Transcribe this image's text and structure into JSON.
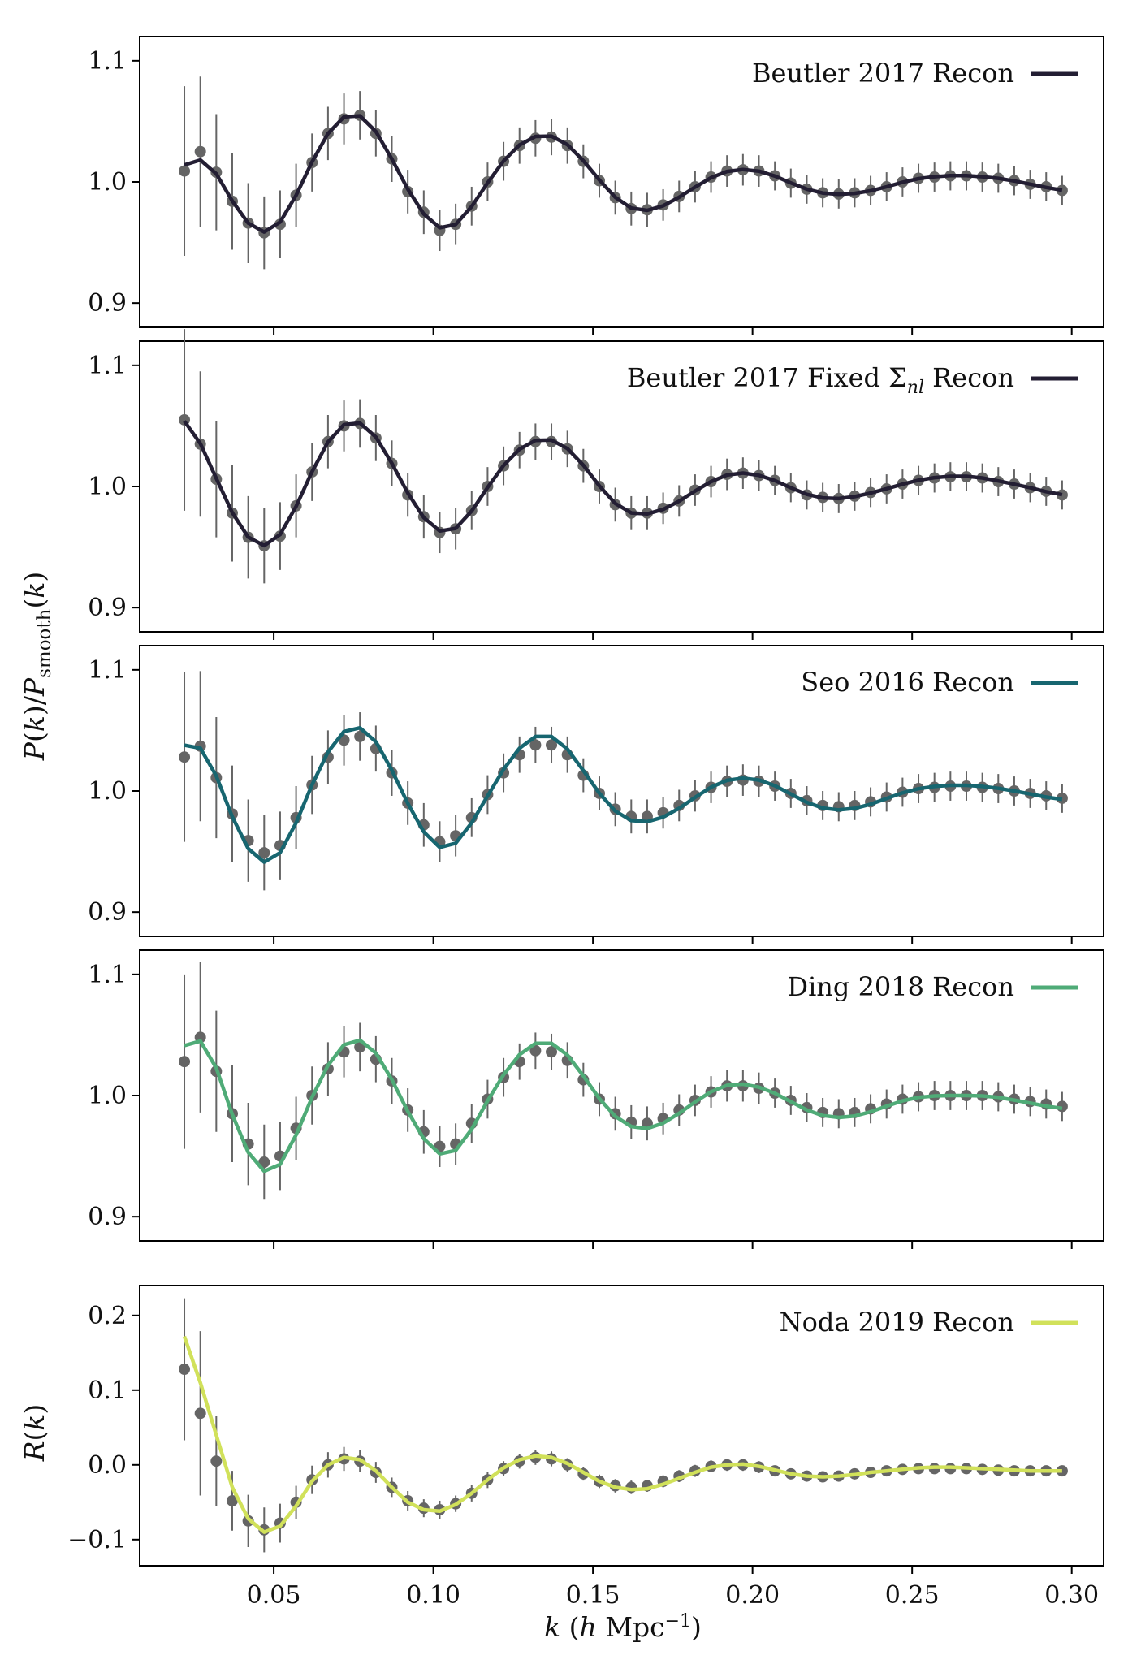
{
  "figure": {
    "ylabel_main": "P(k)/P_smooth(k)",
    "xlabel": "k (h Mpc⁻¹)",
    "x_ticks": [
      "0.05",
      "0.10",
      "0.15",
      "0.20",
      "0.25",
      "0.30"
    ]
  },
  "colors": {
    "data_points": "#656565",
    "beutler": "#231e33",
    "seo": "#176670",
    "ding": "#4fab77",
    "noda": "#d1e15a"
  },
  "chart_data": [
    {
      "type": "line",
      "xlim": [
        0.008,
        0.31
      ],
      "ylim": [
        0.88,
        1.12
      ],
      "y_ticks": [
        "0.9",
        "1.0",
        "1.1"
      ],
      "series": [
        {
          "name": "Beutler 2017 Recon",
          "color": "#231e33",
          "shift": 0.0,
          "amp": 1.0,
          "yscale": 1.0
        }
      ],
      "data_scale": 1.0,
      "data_shift": 0.0,
      "x": [
        0.022,
        0.027,
        0.032,
        0.037,
        0.042,
        0.047,
        0.052,
        0.057,
        0.062,
        0.067,
        0.072,
        0.077,
        0.082,
        0.087,
        0.092,
        0.097,
        0.102,
        0.107,
        0.112,
        0.117,
        0.122,
        0.127,
        0.132,
        0.137,
        0.142,
        0.147,
        0.152,
        0.157,
        0.162,
        0.167,
        0.172,
        0.177,
        0.182,
        0.187,
        0.192,
        0.197,
        0.202,
        0.207,
        0.212,
        0.217,
        0.222,
        0.227,
        0.232,
        0.237,
        0.242,
        0.247,
        0.252,
        0.257,
        0.262,
        0.267,
        0.272,
        0.277,
        0.282,
        0.287,
        0.292,
        0.297
      ],
      "y": [
        1.009,
        1.025,
        1.008,
        0.984,
        0.966,
        0.958,
        0.965,
        0.989,
        1.016,
        1.04,
        1.052,
        1.055,
        1.04,
        1.019,
        0.992,
        0.975,
        0.96,
        0.965,
        0.98,
        1.0,
        1.017,
        1.03,
        1.036,
        1.037,
        1.03,
        1.017,
        1.001,
        0.987,
        0.978,
        0.977,
        0.981,
        0.988,
        0.996,
        1.004,
        1.009,
        1.01,
        1.009,
        1.005,
        0.999,
        0.994,
        0.991,
        0.99,
        0.991,
        0.993,
        0.996,
        1.0,
        1.003,
        1.004,
        1.005,
        1.005,
        1.004,
        1.003,
        1.001,
        0.998,
        0.996,
        0.993
      ],
      "yerr": [
        0.07,
        0.062,
        0.048,
        0.04,
        0.033,
        0.03,
        0.028,
        0.026,
        0.024,
        0.022,
        0.021,
        0.02,
        0.019,
        0.019,
        0.018,
        0.018,
        0.017,
        0.017,
        0.016,
        0.016,
        0.016,
        0.015,
        0.015,
        0.015,
        0.015,
        0.014,
        0.014,
        0.014,
        0.014,
        0.014,
        0.013,
        0.013,
        0.013,
        0.013,
        0.013,
        0.013,
        0.013,
        0.012,
        0.012,
        0.012,
        0.012,
        0.012,
        0.012,
        0.012,
        0.012,
        0.012,
        0.012,
        0.012,
        0.012,
        0.012,
        0.012,
        0.012,
        0.012,
        0.012,
        0.012,
        0.012
      ]
    },
    {
      "type": "line",
      "xlim": [
        0.008,
        0.31
      ],
      "ylim": [
        0.88,
        1.12
      ],
      "y_ticks": [
        "0.9",
        "1.0",
        "1.1"
      ],
      "series": [
        {
          "name": "Beutler 2017 Fixed Σ_nl Recon",
          "color": "#231e33",
          "shift": 0.0,
          "amp": 1.0,
          "yscale": 1.0
        }
      ],
      "x": [
        0.022,
        0.027,
        0.032,
        0.037,
        0.042,
        0.047,
        0.052,
        0.057,
        0.062,
        0.067,
        0.072,
        0.077,
        0.082,
        0.087,
        0.092,
        0.097,
        0.102,
        0.107,
        0.112,
        0.117,
        0.122,
        0.127,
        0.132,
        0.137,
        0.142,
        0.147,
        0.152,
        0.157,
        0.162,
        0.167,
        0.172,
        0.177,
        0.182,
        0.187,
        0.192,
        0.197,
        0.202,
        0.207,
        0.212,
        0.217,
        0.222,
        0.227,
        0.232,
        0.237,
        0.242,
        0.247,
        0.252,
        0.257,
        0.262,
        0.267,
        0.272,
        0.277,
        0.282,
        0.287,
        0.292,
        0.297
      ],
      "y": [
        1.055,
        1.035,
        1.006,
        0.978,
        0.958,
        0.951,
        0.959,
        0.984,
        1.012,
        1.037,
        1.05,
        1.052,
        1.04,
        1.019,
        0.993,
        0.975,
        0.962,
        0.965,
        0.98,
        1.0,
        1.017,
        1.03,
        1.037,
        1.037,
        1.031,
        1.017,
        1.0,
        0.985,
        0.978,
        0.978,
        0.982,
        0.988,
        0.997,
        1.004,
        1.01,
        1.011,
        1.009,
        1.005,
        0.999,
        0.993,
        0.991,
        0.99,
        0.992,
        0.995,
        0.998,
        1.002,
        1.005,
        1.007,
        1.008,
        1.008,
        1.007,
        1.004,
        1.002,
        0.999,
        0.996,
        0.993
      ],
      "yerr": [
        0.075,
        0.06,
        0.048,
        0.04,
        0.034,
        0.031,
        0.028,
        0.026,
        0.024,
        0.022,
        0.021,
        0.02,
        0.019,
        0.019,
        0.018,
        0.018,
        0.017,
        0.017,
        0.016,
        0.016,
        0.016,
        0.015,
        0.015,
        0.015,
        0.015,
        0.014,
        0.014,
        0.014,
        0.014,
        0.014,
        0.013,
        0.013,
        0.013,
        0.013,
        0.013,
        0.013,
        0.013,
        0.012,
        0.012,
        0.012,
        0.012,
        0.012,
        0.012,
        0.012,
        0.012,
        0.012,
        0.012,
        0.012,
        0.012,
        0.012,
        0.012,
        0.012,
        0.012,
        0.012,
        0.012,
        0.012
      ]
    },
    {
      "type": "line",
      "xlim": [
        0.008,
        0.31
      ],
      "ylim": [
        0.88,
        1.12
      ],
      "y_ticks": [
        "0.9",
        "1.0",
        "1.1"
      ],
      "series": [
        {
          "name": "Seo 2016 Recon",
          "color": "#176670",
          "shift": 0.0,
          "amp": 1.25,
          "yscale": 1.0
        }
      ],
      "x": [
        0.022,
        0.027,
        0.032,
        0.037,
        0.042,
        0.047,
        0.052,
        0.057,
        0.062,
        0.067,
        0.072,
        0.077,
        0.082,
        0.087,
        0.092,
        0.097,
        0.102,
        0.107,
        0.112,
        0.117,
        0.122,
        0.127,
        0.132,
        0.137,
        0.142,
        0.147,
        0.152,
        0.157,
        0.162,
        0.167,
        0.172,
        0.177,
        0.182,
        0.187,
        0.192,
        0.197,
        0.202,
        0.207,
        0.212,
        0.217,
        0.222,
        0.227,
        0.232,
        0.237,
        0.242,
        0.247,
        0.252,
        0.257,
        0.262,
        0.267,
        0.272,
        0.277,
        0.282,
        0.287,
        0.292,
        0.297
      ],
      "y": [
        1.028,
        1.037,
        1.011,
        0.981,
        0.959,
        0.949,
        0.955,
        0.978,
        1.005,
        1.028,
        1.042,
        1.045,
        1.035,
        1.015,
        0.99,
        0.972,
        0.958,
        0.963,
        0.978,
        0.997,
        1.015,
        1.03,
        1.038,
        1.038,
        1.03,
        1.013,
        0.998,
        0.985,
        0.979,
        0.979,
        0.982,
        0.988,
        0.996,
        1.003,
        1.008,
        1.009,
        1.008,
        1.004,
        0.998,
        0.992,
        0.988,
        0.987,
        0.988,
        0.991,
        0.995,
        0.999,
        1.002,
        1.003,
        1.004,
        1.004,
        1.003,
        1.002,
        1.0,
        0.998,
        0.996,
        0.994
      ],
      "yerr": [
        0.07,
        0.062,
        0.05,
        0.04,
        0.034,
        0.031,
        0.028,
        0.026,
        0.024,
        0.022,
        0.021,
        0.02,
        0.019,
        0.019,
        0.018,
        0.018,
        0.017,
        0.017,
        0.016,
        0.016,
        0.016,
        0.015,
        0.015,
        0.015,
        0.015,
        0.014,
        0.014,
        0.014,
        0.014,
        0.014,
        0.013,
        0.013,
        0.013,
        0.013,
        0.013,
        0.013,
        0.013,
        0.012,
        0.012,
        0.012,
        0.012,
        0.012,
        0.012,
        0.012,
        0.012,
        0.012,
        0.012,
        0.012,
        0.012,
        0.012,
        0.012,
        0.012,
        0.012,
        0.012,
        0.012,
        0.012
      ]
    },
    {
      "type": "line",
      "xlim": [
        0.008,
        0.31
      ],
      "ylim": [
        0.88,
        1.12
      ],
      "y_ticks": [
        "0.9",
        "1.0",
        "1.1"
      ],
      "series": [
        {
          "name": "Ding 2018 Recon",
          "color": "#4fab77",
          "shift": 0.0,
          "amp": 1.25,
          "yscale": 1.0
        }
      ],
      "x": [
        0.022,
        0.027,
        0.032,
        0.037,
        0.042,
        0.047,
        0.052,
        0.057,
        0.062,
        0.067,
        0.072,
        0.077,
        0.082,
        0.087,
        0.092,
        0.097,
        0.102,
        0.107,
        0.112,
        0.117,
        0.122,
        0.127,
        0.132,
        0.137,
        0.142,
        0.147,
        0.152,
        0.157,
        0.162,
        0.167,
        0.172,
        0.177,
        0.182,
        0.187,
        0.192,
        0.197,
        0.202,
        0.207,
        0.212,
        0.217,
        0.222,
        0.227,
        0.232,
        0.237,
        0.242,
        0.247,
        0.252,
        0.257,
        0.262,
        0.267,
        0.272,
        0.277,
        0.282,
        0.287,
        0.292,
        0.297
      ],
      "y": [
        1.028,
        1.048,
        1.02,
        0.985,
        0.96,
        0.945,
        0.95,
        0.973,
        1.0,
        1.022,
        1.036,
        1.04,
        1.03,
        1.012,
        0.988,
        0.97,
        0.958,
        0.96,
        0.977,
        0.997,
        1.015,
        1.028,
        1.037,
        1.036,
        1.029,
        1.013,
        0.997,
        0.985,
        0.978,
        0.977,
        0.981,
        0.988,
        0.996,
        1.003,
        1.008,
        1.008,
        1.006,
        1.002,
        0.996,
        0.99,
        0.986,
        0.985,
        0.986,
        0.989,
        0.993,
        0.997,
        0.999,
        1.0,
        1.0,
        1.0,
        1.0,
        0.999,
        0.997,
        0.995,
        0.993,
        0.991
      ],
      "yerr": [
        0.072,
        0.062,
        0.05,
        0.04,
        0.034,
        0.031,
        0.028,
        0.026,
        0.024,
        0.022,
        0.021,
        0.02,
        0.019,
        0.019,
        0.018,
        0.018,
        0.017,
        0.017,
        0.016,
        0.016,
        0.016,
        0.015,
        0.015,
        0.015,
        0.015,
        0.014,
        0.014,
        0.014,
        0.014,
        0.014,
        0.013,
        0.013,
        0.013,
        0.013,
        0.013,
        0.013,
        0.013,
        0.012,
        0.012,
        0.012,
        0.012,
        0.012,
        0.012,
        0.012,
        0.012,
        0.012,
        0.012,
        0.012,
        0.012,
        0.012,
        0.012,
        0.012,
        0.012,
        0.012,
        0.012,
        0.012
      ]
    },
    {
      "type": "line",
      "ylabel": "R(k)",
      "xlim": [
        0.008,
        0.31
      ],
      "ylim": [
        -0.135,
        0.24
      ],
      "y_ticks": [
        "−0.1",
        "0.0",
        "0.1",
        "0.2"
      ],
      "series": [
        {
          "name": "Noda 2019 Recon",
          "color": "#d1e15a"
        }
      ],
      "x": [
        0.022,
        0.027,
        0.032,
        0.037,
        0.042,
        0.047,
        0.052,
        0.057,
        0.062,
        0.067,
        0.072,
        0.077,
        0.082,
        0.087,
        0.092,
        0.097,
        0.102,
        0.107,
        0.112,
        0.117,
        0.122,
        0.127,
        0.132,
        0.137,
        0.142,
        0.147,
        0.152,
        0.157,
        0.162,
        0.167,
        0.172,
        0.177,
        0.182,
        0.187,
        0.192,
        0.197,
        0.202,
        0.207,
        0.212,
        0.217,
        0.222,
        0.227,
        0.232,
        0.237,
        0.242,
        0.247,
        0.252,
        0.257,
        0.262,
        0.267,
        0.272,
        0.277,
        0.282,
        0.287,
        0.292,
        0.297
      ],
      "y": [
        0.128,
        0.069,
        0.005,
        -0.048,
        -0.075,
        -0.087,
        -0.078,
        -0.05,
        -0.02,
        0.0,
        0.008,
        0.005,
        -0.01,
        -0.03,
        -0.048,
        -0.058,
        -0.06,
        -0.052,
        -0.038,
        -0.02,
        -0.005,
        0.005,
        0.01,
        0.008,
        0.0,
        -0.012,
        -0.022,
        -0.028,
        -0.03,
        -0.028,
        -0.022,
        -0.015,
        -0.008,
        -0.002,
        0.0,
        0.0,
        -0.003,
        -0.008,
        -0.012,
        -0.015,
        -0.016,
        -0.015,
        -0.012,
        -0.01,
        -0.008,
        -0.006,
        -0.005,
        -0.005,
        -0.005,
        -0.005,
        -0.006,
        -0.007,
        -0.008,
        -0.008,
        -0.008,
        -0.008
      ],
      "yerr": [
        0.095,
        0.11,
        0.06,
        0.04,
        0.035,
        0.03,
        0.026,
        0.022,
        0.019,
        0.017,
        0.016,
        0.015,
        0.014,
        0.013,
        0.013,
        0.012,
        0.012,
        0.011,
        0.011,
        0.011,
        0.01,
        0.01,
        0.01,
        0.01,
        0.009,
        0.009,
        0.009,
        0.009,
        0.009,
        0.008,
        0.008,
        0.008,
        0.008,
        0.008,
        0.008,
        0.008,
        0.008,
        0.007,
        0.007,
        0.007,
        0.007,
        0.007,
        0.007,
        0.007,
        0.007,
        0.007,
        0.007,
        0.007,
        0.007,
        0.007,
        0.007,
        0.007,
        0.007,
        0.007,
        0.007,
        0.007
      ],
      "model_y": [
        0.172,
        0.11,
        0.04,
        -0.03,
        -0.072,
        -0.09,
        -0.082,
        -0.055,
        -0.022,
        0.0,
        0.01,
        0.007,
        -0.008,
        -0.03,
        -0.05,
        -0.06,
        -0.062,
        -0.053,
        -0.038,
        -0.02,
        -0.004,
        0.007,
        0.012,
        0.01,
        0.002,
        -0.01,
        -0.022,
        -0.03,
        -0.033,
        -0.032,
        -0.026,
        -0.018,
        -0.01,
        -0.003,
        0.0,
        0.001,
        -0.002,
        -0.007,
        -0.012,
        -0.015,
        -0.016,
        -0.015,
        -0.013,
        -0.01,
        -0.008,
        -0.006,
        -0.004,
        -0.003,
        -0.003,
        -0.004,
        -0.005,
        -0.006,
        -0.007,
        -0.008,
        -0.008,
        -0.008
      ]
    }
  ]
}
